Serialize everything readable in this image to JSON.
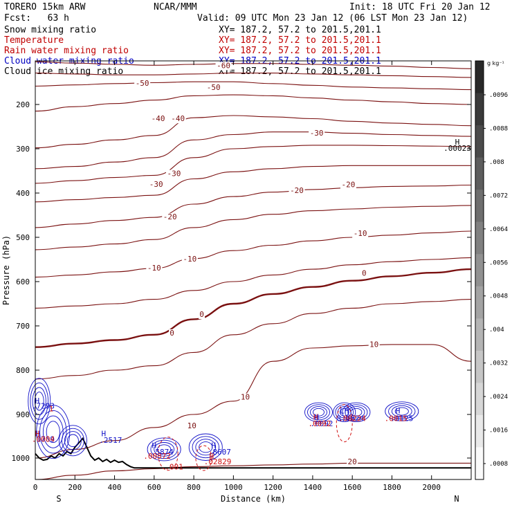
{
  "header": {
    "model": "TORERO 15km ARW",
    "forecast": "Fcst:   63 h",
    "center": "NCAR/MMM",
    "init": "Init: 18 UTC Fri 20 Jan 12",
    "valid": "Valid: 09 UTC Mon 23 Jan 12 (06 LST Mon 23 Jan 12)"
  },
  "fields": [
    {
      "name": "Snow mixing ratio",
      "xy": "XY= 187.2, 57.2 to 201.5,201.1",
      "color": "#000000"
    },
    {
      "name": "Temperature",
      "xy": "XY= 187.2, 57.2 to 201.5,201.1",
      "color": "#c00000"
    },
    {
      "name": "Rain water mixing ratio",
      "xy": "XY= 187.2, 57.2 to 201.5,201.1",
      "color": "#c00000"
    },
    {
      "name": "Cloud water mixing ratio",
      "xy": "XY= 187.2, 57.2 to 201.5,201.1",
      "color": "#0000c0"
    },
    {
      "name": "Cloud ice mixing ratio",
      "xy": "XY= 187.2, 57.2 to 201.5,201.1",
      "color": "#000000"
    }
  ],
  "colorbar": {
    "unit": "g kg⁻¹",
    "labels": [
      ".0096",
      ".0088",
      ".008",
      ".0072",
      ".0064",
      ".0056",
      ".0048",
      ".004",
      ".0032",
      ".0024",
      ".0016",
      ".0008"
    ]
  },
  "colors": {
    "temperature": "#7a1010",
    "cloud_water": "#1010c8",
    "rain": "#d01010",
    "terrain": "#000000"
  },
  "chart_data": {
    "type": "contour",
    "xlabel": "Distance (km)",
    "ylabel": "Pressure (hPa)",
    "x_ticks": [
      0,
      200,
      400,
      600,
      800,
      1000,
      1200,
      1400,
      1600,
      1800,
      2000
    ],
    "y_ticks": [
      200,
      300,
      400,
      500,
      600,
      700,
      800,
      900,
      1000
    ],
    "xlim": [
      0,
      2200
    ],
    "ylim": [
      1050,
      100
    ],
    "y_scale": "log",
    "side_labels": {
      "left": "S",
      "right": "N"
    },
    "temperature_contour_labels": [
      {
        "x": 950,
        "p": 112,
        "text": "-60"
      },
      {
        "x": 540,
        "p": 152,
        "text": "-50"
      },
      {
        "x": 900,
        "p": 162,
        "text": "-50"
      },
      {
        "x": 620,
        "p": 233,
        "text": "-40"
      },
      {
        "x": 720,
        "p": 233,
        "text": "-40"
      },
      {
        "x": 1420,
        "p": 266,
        "text": "-30"
      },
      {
        "x": 610,
        "p": 381,
        "text": "-30"
      },
      {
        "x": 700,
        "p": 357,
        "text": "-30"
      },
      {
        "x": 1320,
        "p": 395,
        "text": "-20"
      },
      {
        "x": 1580,
        "p": 382,
        "text": "-20"
      },
      {
        "x": 680,
        "p": 455,
        "text": "-20"
      },
      {
        "x": 1640,
        "p": 492,
        "text": "-10"
      },
      {
        "x": 600,
        "p": 570,
        "text": "-10"
      },
      {
        "x": 780,
        "p": 550,
        "text": "-10"
      },
      {
        "x": 1660,
        "p": 582,
        "text": "0"
      },
      {
        "x": 840,
        "p": 675,
        "text": "0"
      },
      {
        "x": 690,
        "p": 717,
        "text": "0"
      },
      {
        "x": 1710,
        "p": 743,
        "text": "10"
      },
      {
        "x": 1060,
        "p": 862,
        "text": "10"
      },
      {
        "x": 790,
        "p": 927,
        "text": "10"
      },
      {
        "x": 1600,
        "p": 1010,
        "text": "20"
      }
    ],
    "temperature_lines": [
      {
        "level": -60,
        "p": [
          102,
          105,
          108,
          110,
          108,
          106,
          106,
          108,
          110,
          112,
          115,
          118
        ]
      },
      {
        "level": -55,
        "p": [
          128,
          130,
          132,
          132,
          130,
          128,
          128,
          130,
          132,
          134,
          136,
          138
        ]
      },
      {
        "level": -50,
        "p": [
          158,
          155,
          152,
          150,
          148,
          148,
          152,
          156,
          160,
          162,
          164,
          166
        ]
      },
      {
        "level": -45,
        "p": [
          215,
          205,
          198,
          190,
          180,
          178,
          180,
          185,
          190,
          194,
          198,
          200
        ]
      },
      {
        "level": -40,
        "p": [
          298,
          290,
          280,
          270,
          230,
          225,
          228,
          232,
          238,
          242,
          245,
          248
        ]
      },
      {
        "level": -35,
        "p": [
          345,
          340,
          330,
          320,
          280,
          268,
          262,
          262,
          265,
          268,
          270,
          272
        ]
      },
      {
        "level": -30,
        "p": [
          378,
          372,
          365,
          360,
          320,
          300,
          295,
          292,
          292,
          293,
          294,
          295
        ]
      },
      {
        "level": -25,
        "p": [
          420,
          415,
          410,
          405,
          368,
          352,
          345,
          340,
          338,
          338,
          338,
          338
        ]
      },
      {
        "level": -20,
        "p": [
          478,
          470,
          462,
          455,
          425,
          408,
          398,
          392,
          388,
          385,
          384,
          382
        ]
      },
      {
        "level": -15,
        "p": [
          528,
          522,
          515,
          505,
          478,
          460,
          448,
          440,
          436,
          432,
          430,
          428
        ]
      },
      {
        "level": -10,
        "p": [
          590,
          585,
          578,
          570,
          548,
          530,
          518,
          508,
          500,
          495,
          490,
          486
        ]
      },
      {
        "level": -5,
        "p": [
          660,
          655,
          650,
          640,
          620,
          600,
          585,
          572,
          562,
          555,
          550,
          546
        ]
      },
      {
        "level": 0,
        "p": [
          748,
          740,
          732,
          720,
          685,
          650,
          628,
          612,
          598,
          588,
          580,
          572
        ]
      },
      {
        "level": 5,
        "p": [
          820,
          812,
          800,
          790,
          760,
          720,
          695,
          672,
          660,
          650,
          645,
          640
        ]
      },
      {
        "level": 10,
        "p": [
          1000,
          980,
          960,
          930,
          900,
          870,
          780,
          750,
          745,
          742,
          742,
          780
        ]
      },
      {
        "level": 20,
        "p": [
          1050,
          1040,
          1030,
          1025,
          1020,
          1018,
          1016,
          1014,
          1012,
          1012,
          1012,
          1012
        ]
      }
    ],
    "line_x": [
      0,
      200,
      400,
      600,
      800,
      1000,
      1200,
      1400,
      1600,
      1800,
      2000,
      2200
    ],
    "terrain": {
      "x": [
        0,
        20,
        40,
        60,
        80,
        100,
        120,
        140,
        160,
        180,
        200,
        220,
        240,
        260,
        280,
        300,
        320,
        340,
        360,
        380,
        400,
        420,
        440,
        460,
        480,
        500,
        800,
        1200,
        1600,
        2000,
        2200
      ],
      "p": [
        990,
        1000,
        1005,
        1003,
        995,
        1000,
        990,
        995,
        985,
        990,
        975,
        965,
        955,
        975,
        995,
        1005,
        1000,
        1008,
        1003,
        1010,
        1005,
        1010,
        1008,
        1015,
        1020,
        1023,
        1023,
        1023,
        1023,
        1023,
        1023
      ]
    },
    "cloud_water_labels": [
      {
        "x": 10,
        "p": 870,
        "text": "H"
      },
      {
        "x": 40,
        "p": 882,
        "text": ".7293"
      },
      {
        "x": 15,
        "p": 945,
        "text": "H"
      },
      {
        "x": 40,
        "p": 958,
        "text": ".1709"
      },
      {
        "x": 345,
        "p": 945,
        "text": "H"
      },
      {
        "x": 380,
        "p": 960,
        "text": ".2517"
      },
      {
        "x": 600,
        "p": 972,
        "text": "H"
      },
      {
        "x": 640,
        "p": 987,
        "text": ".5874"
      },
      {
        "x": 900,
        "p": 972,
        "text": "H"
      },
      {
        "x": 930,
        "p": 987,
        "text": ".8607"
      },
      {
        "x": 1420,
        "p": 907,
        "text": "H"
      },
      {
        "x": 1445,
        "p": 922,
        "text": ".0092"
      },
      {
        "x": 1560,
        "p": 893,
        "text": "LH"
      },
      {
        "x": 1590,
        "p": 910,
        "text": "8.9624"
      },
      {
        "x": 1830,
        "p": 893,
        "text": "H"
      },
      {
        "x": 1850,
        "p": 910,
        "text": ".0125"
      }
    ],
    "rain_labels": [
      {
        "x": 10,
        "p": 945,
        "text": "H"
      },
      {
        "x": 40,
        "p": 958,
        "text": ".0004"
      },
      {
        "x": 80,
        "p": 888,
        "text": "1"
      },
      {
        "x": 615,
        "p": 997,
        "text": ".00372"
      },
      {
        "x": 700,
        "p": 1022,
        "text": ".001"
      },
      {
        "x": 890,
        "p": 997,
        "text": "H"
      },
      {
        "x": 920,
        "p": 1010,
        "text": ".02829"
      },
      {
        "x": 1415,
        "p": 907,
        "text": "H"
      },
      {
        "x": 1435,
        "p": 922,
        "text": ".0092"
      },
      {
        "x": 1600,
        "p": 910,
        "text": ".00224"
      },
      {
        "x": 1820,
        "p": 910,
        "text": ".0015"
      }
    ],
    "cloud_ice_label": {
      "x": 2130,
      "p": 286,
      "text": "H"
    },
    "cloud_ice_value": {
      "x": 2130,
      "p": 300,
      "text": ".00023"
    }
  }
}
